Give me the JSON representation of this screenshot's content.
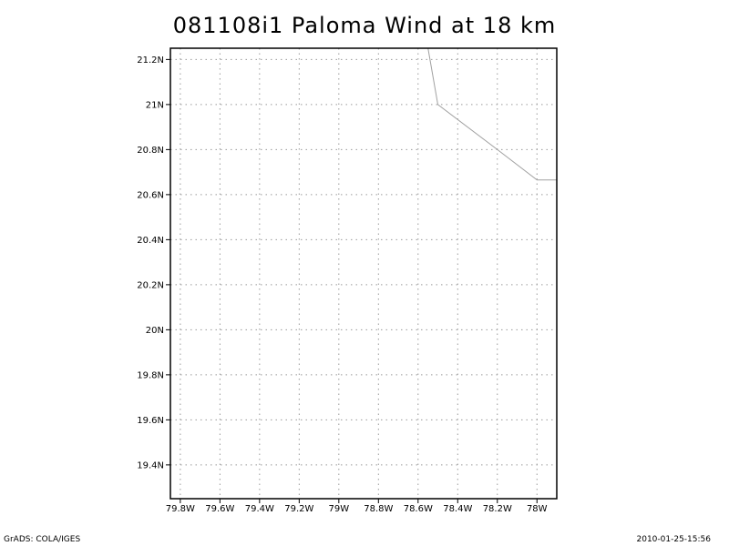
{
  "title": "081108i1 Paloma Wind at 18 km",
  "footer": {
    "left": "GrADS: COLA/IGES",
    "right": "2010-01-25-15:56"
  },
  "colors": {
    "frame": "#000000",
    "grid": "#9a9a9a",
    "coastline": "#a0a0a0"
  },
  "chart_data": {
    "type": "map",
    "lon_range": [
      -79.85,
      -77.9
    ],
    "lat_range": [
      19.25,
      21.25
    ],
    "x_ticks": [
      {
        "value": -79.8,
        "label": "79.8W"
      },
      {
        "value": -79.6,
        "label": "79.6W"
      },
      {
        "value": -79.4,
        "label": "79.4W"
      },
      {
        "value": -79.2,
        "label": "79.2W"
      },
      {
        "value": -79.0,
        "label": "79W"
      },
      {
        "value": -78.8,
        "label": "78.8W"
      },
      {
        "value": -78.6,
        "label": "78.6W"
      },
      {
        "value": -78.4,
        "label": "78.4W"
      },
      {
        "value": -78.2,
        "label": "78.2W"
      },
      {
        "value": -78.0,
        "label": "78W"
      }
    ],
    "y_ticks": [
      {
        "value": 19.4,
        "label": "19.4N"
      },
      {
        "value": 19.6,
        "label": "19.6N"
      },
      {
        "value": 19.8,
        "label": "19.8N"
      },
      {
        "value": 20.0,
        "label": "20N"
      },
      {
        "value": 20.2,
        "label": "20.2N"
      },
      {
        "value": 20.4,
        "label": "20.4N"
      },
      {
        "value": 20.6,
        "label": "20.6N"
      },
      {
        "value": 20.8,
        "label": "20.8N"
      },
      {
        "value": 21.0,
        "label": "21N"
      },
      {
        "value": 21.2,
        "label": "21.2N"
      }
    ],
    "grid": true,
    "coastline": [
      [
        -78.55,
        21.25
      ],
      [
        -78.5,
        21.0
      ],
      [
        -78.2,
        20.8
      ],
      [
        -78.0,
        20.665
      ],
      [
        -77.9,
        20.665
      ]
    ]
  }
}
